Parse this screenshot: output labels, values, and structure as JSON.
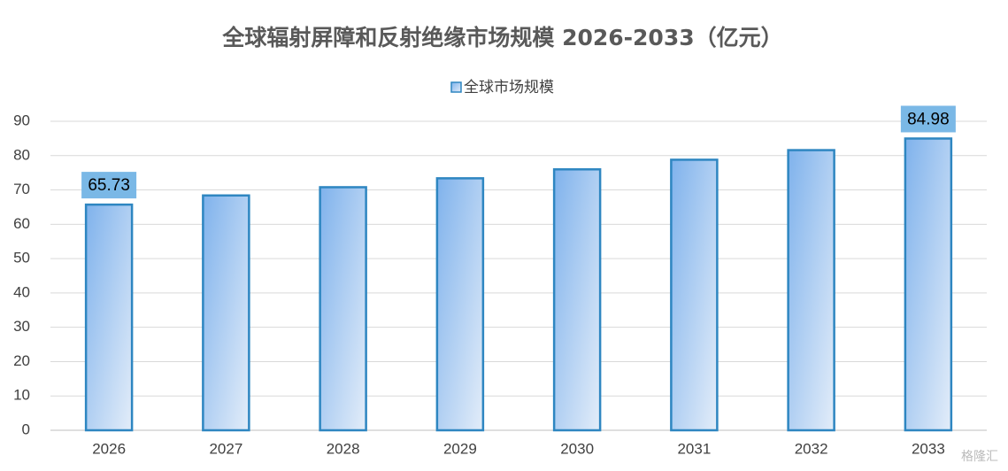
{
  "chart_data": {
    "type": "bar",
    "title": "全球辐射屏障和反射绝缘市场规模 2026-2033（亿元）",
    "categories": [
      "2026",
      "2027",
      "2028",
      "2029",
      "2030",
      "2031",
      "2032",
      "2033"
    ],
    "series": [
      {
        "name": "全球市场规模",
        "color": "#2e86c1",
        "values": [
          65.73,
          68.4,
          70.8,
          73.4,
          76.0,
          78.8,
          81.6,
          84.98
        ],
        "value_labels": [
          "65.73",
          null,
          null,
          null,
          null,
          null,
          null,
          "84.98"
        ]
      }
    ],
    "ylim": [
      0,
      90
    ],
    "yticks": [
      0,
      10,
      20,
      30,
      40,
      50,
      60,
      70,
      80,
      90
    ],
    "grid": true,
    "legend": "top",
    "watermark": "格隆汇"
  }
}
